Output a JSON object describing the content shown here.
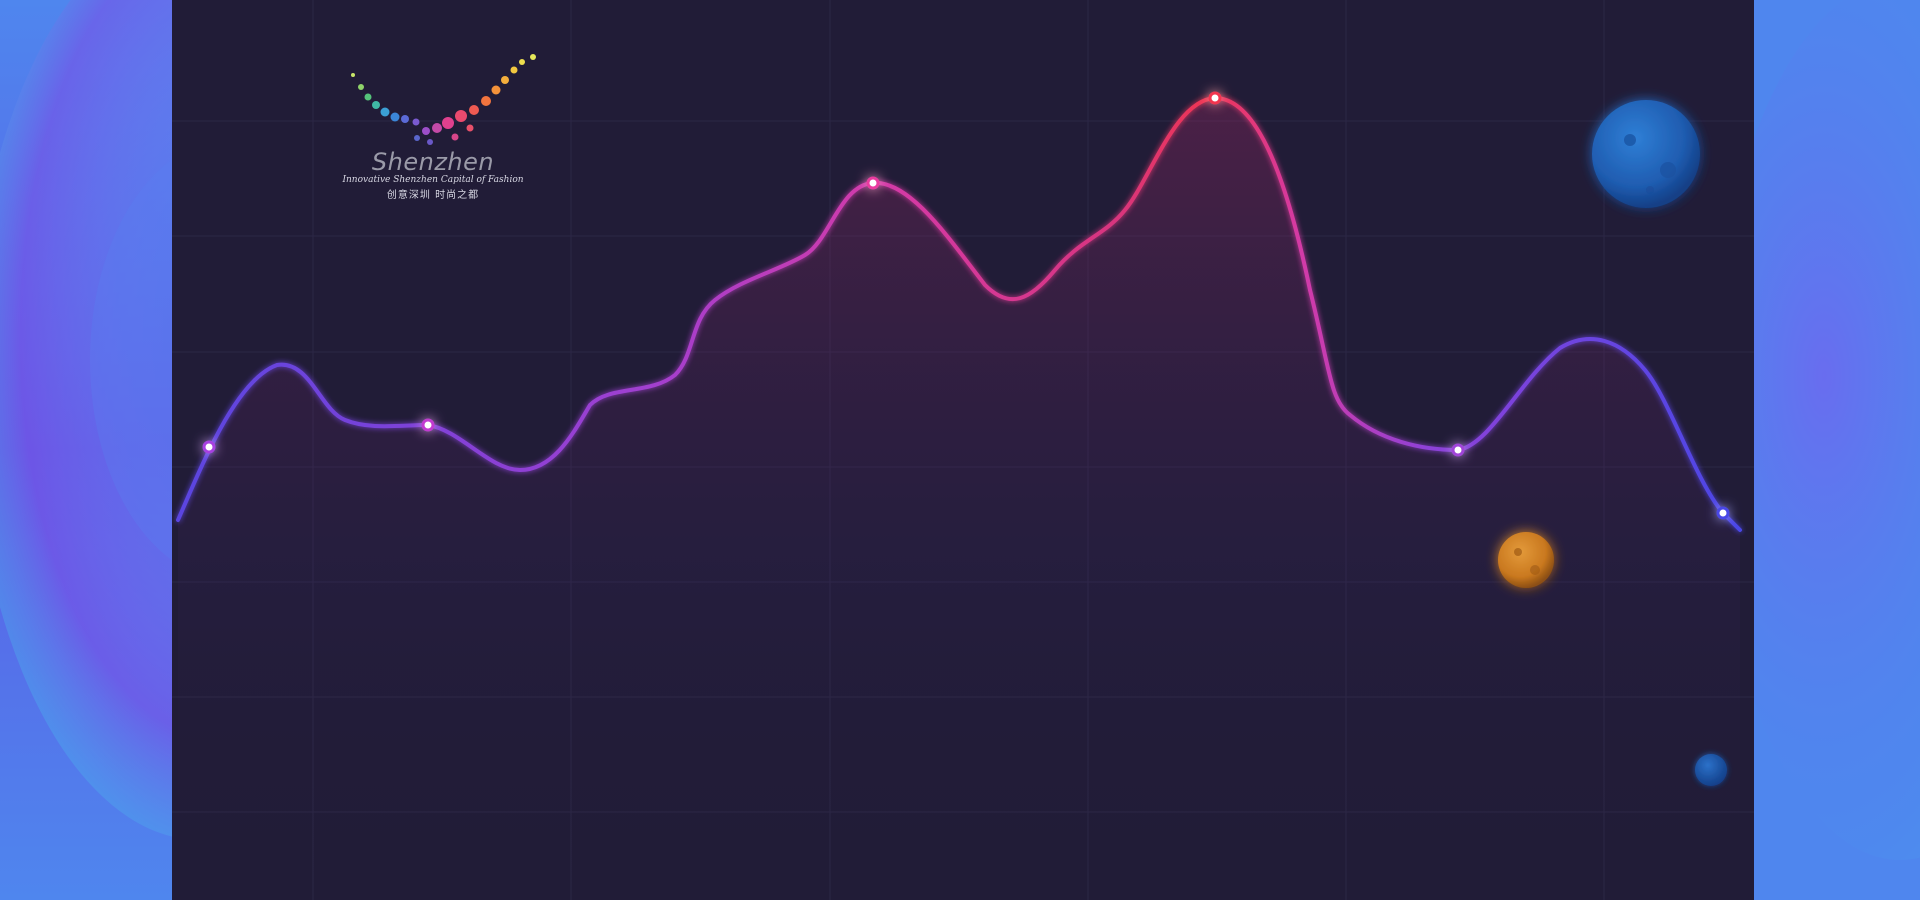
{
  "logo": {
    "wordmark": "Shenzhen",
    "tagline": "Innovative Shenzhen  Capital of Fashion",
    "chinese": "创意深圳  时尚之都"
  },
  "colors": {
    "outer_background": "#4f86ee",
    "panel_background": "#211c37",
    "grid_line": "#2c2746",
    "curve_start": "#5a45e0",
    "curve_mid": "#c43aa8",
    "curve_peak": "#ef3552",
    "planet_large": "#1f5cb0",
    "planet_orange": "#c9781f",
    "planet_small": "#1a4fa3"
  },
  "decorations": {
    "planets": [
      "large-blue-planet",
      "orange-planet",
      "small-blue-planet"
    ],
    "curve_markers": 6
  }
}
